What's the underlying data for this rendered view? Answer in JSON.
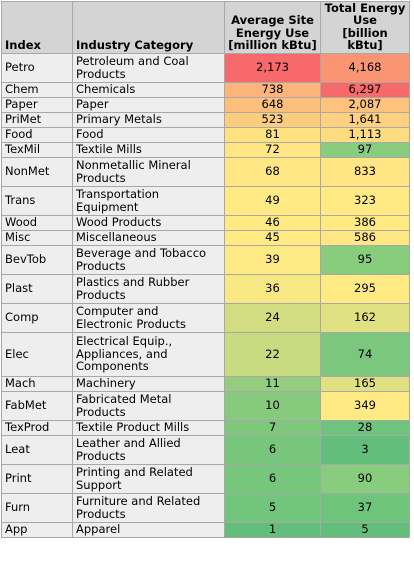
{
  "table": {
    "headers": [
      "Index",
      "Industry Category",
      [
        "Average Site",
        "Energy Use",
        "[million kBtu]"
      ],
      [
        "Total Energy",
        "Use",
        "[billion kBtu]"
      ]
    ],
    "rows": [
      {
        "index": "Petro",
        "category": [
          "Petroleum and Coal",
          "Products"
        ],
        "avg": "2,173",
        "total": "4,168",
        "avg_color": "#f8696b",
        "total_color": "#fa9574"
      },
      {
        "index": "Chem",
        "category": [
          "Chemicals"
        ],
        "avg": "738",
        "total": "6,297",
        "avg_color": "#fcb47a",
        "total_color": "#f8696b"
      },
      {
        "index": "Paper",
        "category": [
          "Paper"
        ],
        "avg": "648",
        "total": "2,087",
        "avg_color": "#fdbf7c",
        "total_color": "#fdc37d"
      },
      {
        "index": "PriMet",
        "category": [
          "Primary Metals"
        ],
        "avg": "523",
        "total": "1,641",
        "avg_color": "#fdcd7e",
        "total_color": "#fed07f"
      },
      {
        "index": "Food",
        "category": [
          "Food"
        ],
        "avg": "81",
        "total": "1,113",
        "avg_color": "#ffe383",
        "total_color": "#fedc81"
      },
      {
        "index": "TexMil",
        "category": [
          "Textile Mills"
        ],
        "avg": "72",
        "total": "97",
        "avg_color": "#ffe583",
        "total_color": "#88cc7e"
      },
      {
        "index": "NonMet",
        "category": [
          "Nonmetallic Mineral",
          "Products"
        ],
        "avg": "68",
        "total": "833",
        "avg_color": "#ffe883",
        "total_color": "#ffe583"
      },
      {
        "index": "Trans",
        "category": [
          "Transportation",
          "Equipment"
        ],
        "avg": "49",
        "total": "323",
        "avg_color": "#ffea84",
        "total_color": "#ffea84"
      },
      {
        "index": "Wood",
        "category": [
          "Wood Products"
        ],
        "avg": "46",
        "total": "386",
        "avg_color": "#ffea84",
        "total_color": "#ffea84"
      },
      {
        "index": "Misc",
        "category": [
          "Miscellaneous"
        ],
        "avg": "45",
        "total": "586",
        "avg_color": "#ffea84",
        "total_color": "#ffe883"
      },
      {
        "index": "BevTob",
        "category": [
          "Beverage and Tobacco",
          "Products"
        ],
        "avg": "39",
        "total": "95",
        "avg_color": "#feea84",
        "total_color": "#88cc7e"
      },
      {
        "index": "Plast",
        "category": [
          "Plastics and Rubber",
          "Products"
        ],
        "avg": "36",
        "total": "295",
        "avg_color": "#f7e883",
        "total_color": "#ffea84"
      },
      {
        "index": "Comp",
        "category": [
          "Computer and",
          "Electronic Products"
        ],
        "avg": "24",
        "total": "162",
        "avg_color": "#d2dd81",
        "total_color": "#dfe182"
      },
      {
        "index": "Elec",
        "category": [
          "Electrical Equip.,",
          "Appliances, and",
          "Components"
        ],
        "avg": "22",
        "total": "74",
        "avg_color": "#c9db80",
        "total_color": "#7bc77d"
      },
      {
        "index": "Mach",
        "category": [
          "Machinery"
        ],
        "avg": "11",
        "total": "165",
        "avg_color": "#93cd7d",
        "total_color": "#e0e282"
      },
      {
        "index": "FabMet",
        "category": [
          "Fabricated Metal",
          "Products"
        ],
        "avg": "10",
        "total": "349",
        "avg_color": "#88ca7d",
        "total_color": "#ffea84"
      },
      {
        "index": "TexProd",
        "category": [
          "Textile Product Mills"
        ],
        "avg": "7",
        "total": "28",
        "avg_color": "#7ec87c",
        "total_color": "#6ec47c"
      },
      {
        "index": "Leat",
        "category": [
          "Leather and Allied",
          "Products"
        ],
        "avg": "6",
        "total": "3",
        "avg_color": "#78c67c",
        "total_color": "#63be7b"
      },
      {
        "index": "Print",
        "category": [
          "Printing and Related",
          "Support"
        ],
        "avg": "6",
        "total": "90",
        "avg_color": "#76c67c",
        "total_color": "#88cc7e"
      },
      {
        "index": "Furn",
        "category": [
          "Furniture and Related",
          "Products"
        ],
        "avg": "5",
        "total": "37",
        "avg_color": "#72c57c",
        "total_color": "#6fc47c"
      },
      {
        "index": "App",
        "category": [
          "Apparel"
        ],
        "avg": "1",
        "total": "5",
        "avg_color": "#63be7b",
        "total_color": "#63be7b"
      }
    ]
  }
}
